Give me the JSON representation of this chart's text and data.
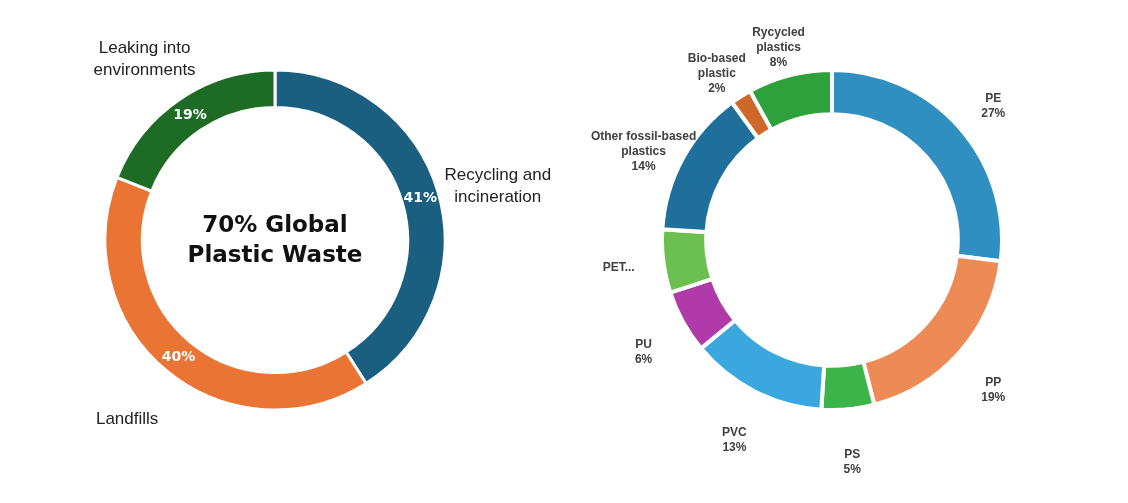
{
  "chart_data": [
    {
      "type": "donut",
      "title": "70% Global Plastic Waste",
      "categories": [
        "Recycling and incineration",
        "Landfills",
        "Leaking into environments"
      ],
      "values": [
        41,
        40,
        19
      ],
      "colors": [
        "#1a5f80",
        "#ea7434",
        "#1e6b25"
      ],
      "value_labels": [
        "41%",
        "40%",
        "19%"
      ]
    },
    {
      "type": "donut",
      "categories": [
        "PE",
        "PP",
        "PS",
        "PVC",
        "PU",
        "PET...",
        "Other fossil-based plastics",
        "Bio-based plastic",
        "Rycycled plastics"
      ],
      "values": [
        27,
        19,
        5,
        13,
        6,
        6,
        14,
        2,
        8
      ],
      "colors": [
        "#2f8fc0",
        "#ee8a55",
        "#3cb44a",
        "#3aa8de",
        "#b03aa8",
        "#6cc050",
        "#1f6f9c",
        "#d0672a",
        "#2ea03c"
      ],
      "value_labels": [
        "27%",
        "19%",
        "5%",
        "13%",
        "6%",
        null,
        "14%",
        "2%",
        "8%"
      ]
    }
  ]
}
